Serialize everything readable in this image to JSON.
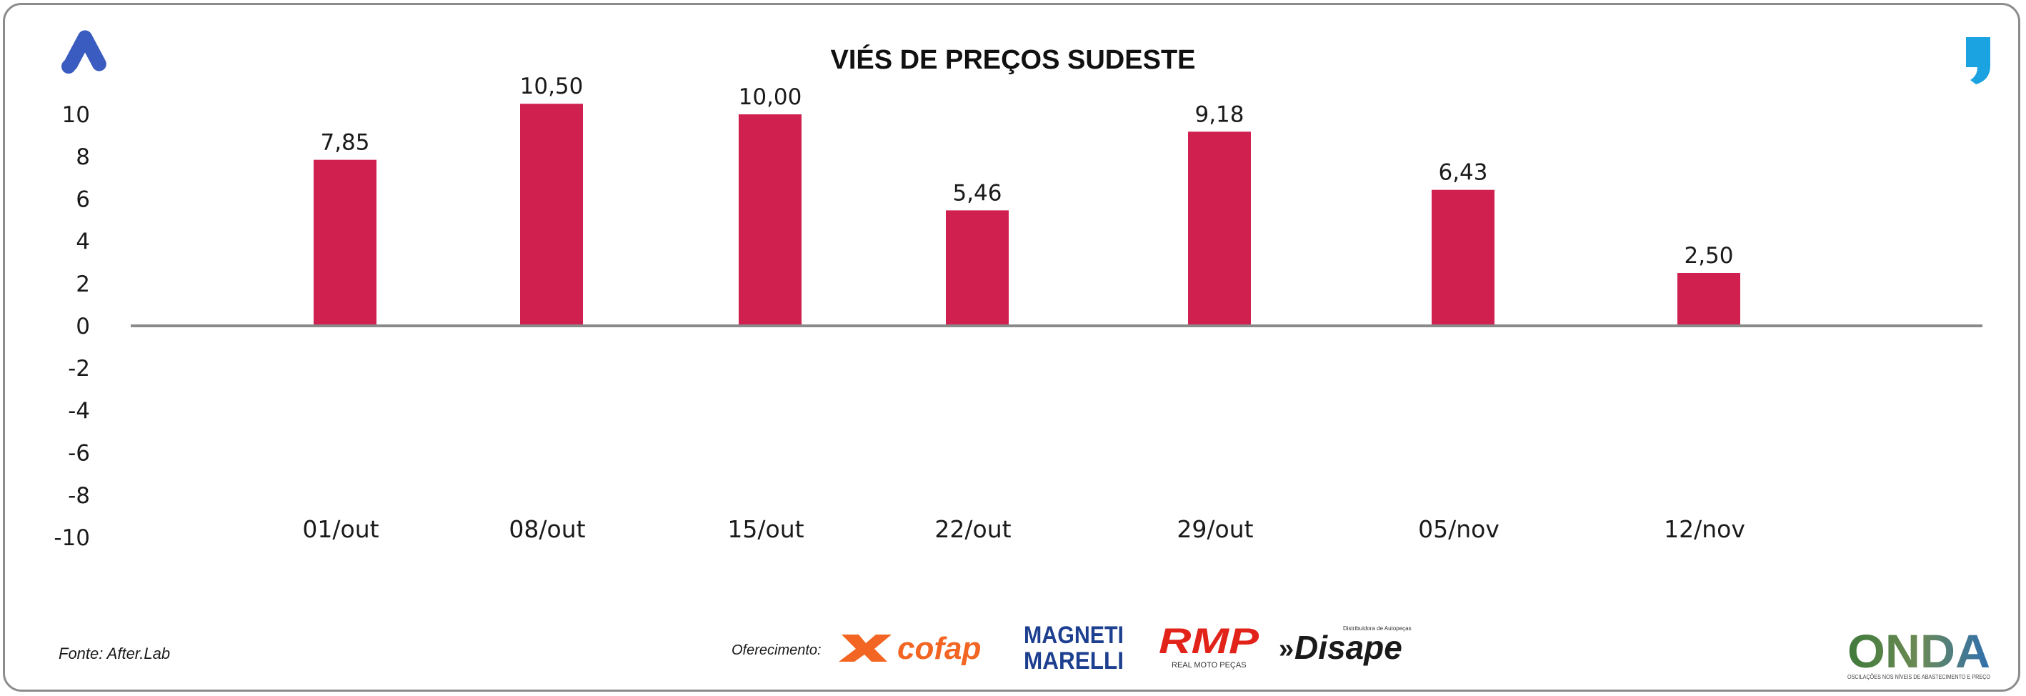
{
  "chart_data": {
    "type": "bar",
    "title": "VIÉS DE PREÇOS SUDESTE",
    "categories": [
      "01/out",
      "08/out",
      "15/out",
      "22/out",
      "29/out",
      "05/nov",
      "12/nov"
    ],
    "values": [
      7.85,
      10.5,
      10.0,
      5.46,
      9.18,
      6.43,
      2.5
    ],
    "value_labels": [
      "7,85",
      "10,50",
      "10,00",
      "5,46",
      "9,18",
      "6,43",
      "2,50"
    ],
    "yticks": [
      "10",
      "8",
      "6",
      "4",
      "2",
      "0",
      "-2",
      "-4",
      "-6",
      "-8",
      "-10"
    ],
    "ylim": [
      -10,
      10
    ],
    "xlabel": "",
    "ylabel": "",
    "grid": false,
    "bar_color": "#d0204f"
  },
  "footer": {
    "source": "Fonte: After.Lab",
    "sponsor_label": "Oferecimento:",
    "sponsors": [
      "cofap",
      "MAGNETI MARELLI",
      "RMP",
      "REAL MOTO PEÇAS",
      "Disape",
      "Distribuidora de Autopeças"
    ],
    "brand": "ONDA",
    "brand_tagline": "OSCILAÇÕES NOS NÍVEIS DE ABASTECIMENTO E PREÇO"
  },
  "icons": {
    "top_left": "after-lab-logo-icon",
    "top_right": "quote-mark-icon"
  },
  "colors": {
    "cofap": "#f26522",
    "magneti": "#1d3f8f",
    "rmp": "#e2231a",
    "after_lab": "#3a5bbf",
    "quote": "#1aa3e0"
  }
}
